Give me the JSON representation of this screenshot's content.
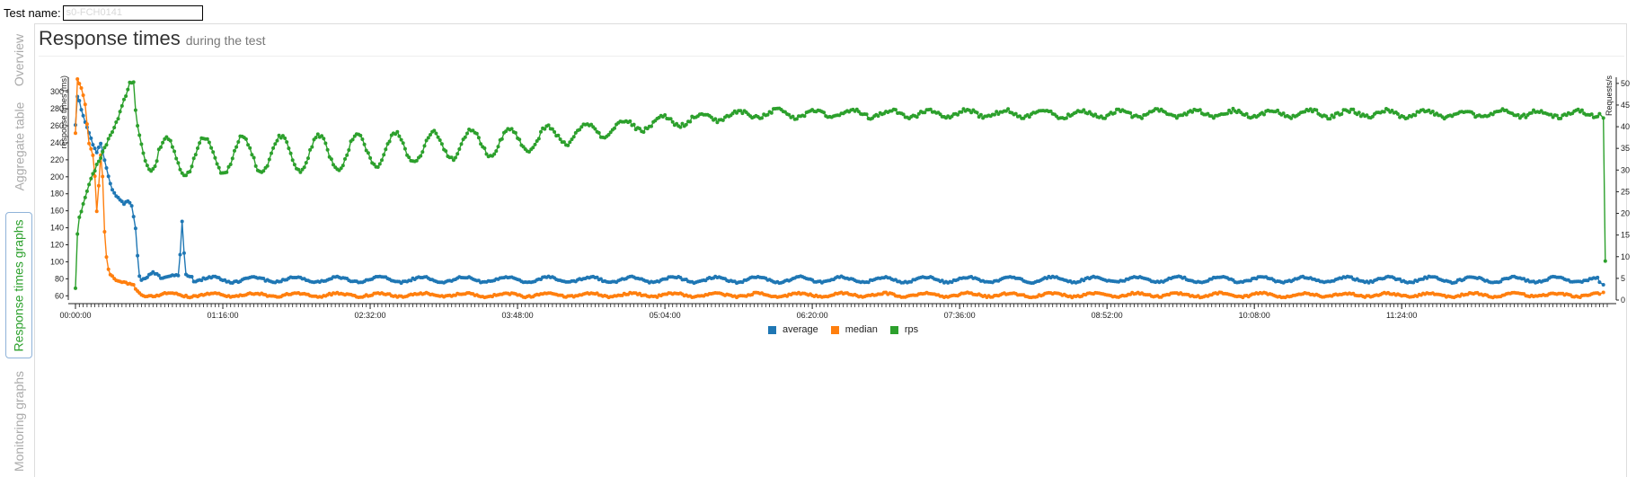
{
  "header": {
    "test_name_label": "Test name:",
    "test_name_value": "s0-FCH0141"
  },
  "side_tabs": [
    {
      "label": "Overview",
      "active": false
    },
    {
      "label": "Aggregate table",
      "active": false
    },
    {
      "label": "Response times graphs",
      "active": true
    },
    {
      "label": "Monitoring graphs",
      "active": false
    }
  ],
  "page": {
    "title": "Response times",
    "subtitle": "during the test"
  },
  "colors": {
    "average": "#1f77b4",
    "median": "#ff7f0e",
    "rps": "#2ca02c",
    "active_tab_text": "#2ca02c",
    "inactive_tab_text": "#aaaaaa"
  },
  "chart_data": {
    "type": "line",
    "xlabel": "",
    "ylabel_left": "response times (ms)",
    "ylabel_right": "Requests/s",
    "x_range_seconds": [
      0,
      47400
    ],
    "x_tick_labels": [
      "00:00:00",
      "01:16:00",
      "02:32:00",
      "03:48:00",
      "05:04:00",
      "06:20:00",
      "07:36:00",
      "08:52:00",
      "10:08:00",
      "11:24:00"
    ],
    "x_tick_seconds": [
      0,
      4560,
      9120,
      13680,
      18240,
      22800,
      27360,
      31920,
      36480,
      41040
    ],
    "ylim_left": [
      55,
      315
    ],
    "y_left_ticks": [
      60,
      80,
      100,
      120,
      140,
      160,
      180,
      200,
      220,
      240,
      260,
      280,
      300
    ],
    "ylim_right": [
      0,
      51
    ],
    "y_right_ticks": [
      0,
      5,
      10,
      15,
      20,
      25,
      30,
      35,
      40,
      45,
      50
    ],
    "legend_position": "bottom-center",
    "series": [
      {
        "name": "average",
        "axis": "left",
        "keypoints": [
          [
            0,
            262
          ],
          [
            60,
            295
          ],
          [
            120,
            290
          ],
          [
            180,
            278
          ],
          [
            300,
            265
          ],
          [
            420,
            252
          ],
          [
            540,
            238
          ],
          [
            660,
            228
          ],
          [
            780,
            240
          ],
          [
            900,
            220
          ],
          [
            1020,
            200
          ],
          [
            1140,
            185
          ],
          [
            1260,
            178
          ],
          [
            1380,
            172
          ],
          [
            1500,
            168
          ],
          [
            1620,
            172
          ],
          [
            1740,
            165
          ],
          [
            1860,
            140
          ],
          [
            1940,
            95
          ],
          [
            2000,
            78
          ],
          [
            2200,
            82
          ],
          [
            2400,
            88
          ],
          [
            2700,
            80
          ],
          [
            3000,
            85
          ],
          [
            3200,
            83
          ],
          [
            3300,
            148
          ],
          [
            3400,
            85
          ],
          [
            3600,
            82
          ],
          [
            47400,
            78
          ]
        ],
        "steady_mean": 79,
        "steady_amplitude": 3,
        "oscillation_period_s": 1300,
        "final_values": [
          [
            47160,
            76
          ],
          [
            47280,
            73
          ]
        ]
      },
      {
        "name": "median",
        "axis": "left",
        "keypoints": [
          [
            0,
            252
          ],
          [
            60,
            315
          ],
          [
            120,
            310
          ],
          [
            180,
            305
          ],
          [
            300,
            285
          ],
          [
            420,
            240
          ],
          [
            540,
            225
          ],
          [
            600,
            200
          ],
          [
            660,
            160
          ],
          [
            720,
            190
          ],
          [
            780,
            225
          ],
          [
            840,
            200
          ],
          [
            900,
            135
          ],
          [
            960,
            105
          ],
          [
            1020,
            92
          ],
          [
            1080,
            85
          ],
          [
            1200,
            80
          ],
          [
            1400,
            76
          ],
          [
            1600,
            75
          ],
          [
            1800,
            72
          ],
          [
            1900,
            66
          ],
          [
            2000,
            62
          ],
          [
            47400,
            62
          ]
        ],
        "steady_mean": 61,
        "steady_amplitude": 2,
        "oscillation_period_s": 1300,
        "final_values": [
          [
            47160,
            62
          ],
          [
            47280,
            64
          ]
        ]
      },
      {
        "name": "rps",
        "axis": "right",
        "keypoints": [
          [
            0,
            3
          ],
          [
            60,
            15
          ],
          [
            120,
            19
          ],
          [
            240,
            22
          ],
          [
            360,
            25
          ],
          [
            480,
            28
          ],
          [
            600,
            30
          ],
          [
            720,
            32
          ],
          [
            840,
            34
          ],
          [
            960,
            36
          ],
          [
            1080,
            38
          ],
          [
            1200,
            40
          ],
          [
            1320,
            42
          ],
          [
            1440,
            45
          ],
          [
            1560,
            47
          ],
          [
            1680,
            50
          ],
          [
            1800,
            50
          ],
          [
            1860,
            44
          ],
          [
            1920,
            40
          ],
          [
            2040,
            36
          ],
          [
            2160,
            32
          ],
          [
            2280,
            30
          ],
          [
            2400,
            30
          ],
          [
            2520,
            32
          ]
        ],
        "trend": [
          [
            2520,
            33
          ],
          [
            8000,
            34
          ],
          [
            14000,
            37
          ],
          [
            18000,
            41
          ],
          [
            21000,
            43
          ],
          [
            47100,
            43
          ]
        ],
        "oscillation_amplitude": [
          [
            2520,
            4.5
          ],
          [
            8000,
            4
          ],
          [
            14000,
            2.8
          ],
          [
            17000,
            1.5
          ],
          [
            20000,
            0.9
          ],
          [
            47100,
            0.7
          ]
        ],
        "oscillation_period_s": 1180,
        "final_values": [
          [
            47160,
            43
          ],
          [
            47280,
            42
          ],
          [
            47340,
            9
          ]
        ]
      }
    ]
  }
}
